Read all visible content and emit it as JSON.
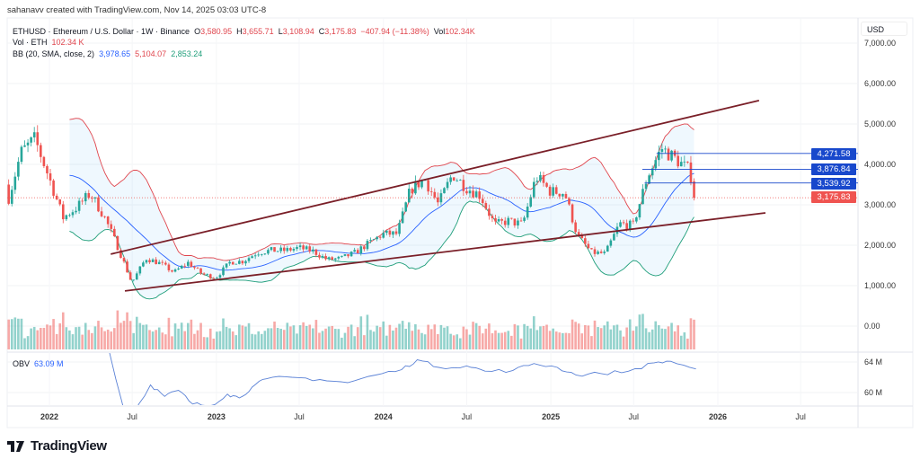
{
  "credit": "sahanavv created with TradingView.com, Nov 14, 2025 03:03 UTC-8",
  "legend": {
    "symbol": "ETHUSD · Ethereum / U.S. Dollar · 1W · Binance",
    "o_label": "O",
    "open": "3,580.95",
    "h_label": "H",
    "high": "3,655.71",
    "l_label": "L",
    "low": "3,108.94",
    "c_label": "C",
    "close": "3,175.83",
    "change": "−407.94 (−11.38%)",
    "vol_label": "Vol",
    "vol": "102.34K",
    "vol_series": "Vol · ETH",
    "vol_value": "102.34 K",
    "bb_label": "BB (20, SMA, close, 2)",
    "bb_basis": "3,978.65",
    "bb_upper": "5,104.07",
    "bb_lower": "2,853.24",
    "obv_label": "OBV",
    "obv_value": "63.09 M"
  },
  "currency": "USD",
  "logo": "TradingView",
  "colors": {
    "up": "#26a69a",
    "down": "#ef5350",
    "bb_basis": "#2962ff",
    "bb_upper": "#e0464e",
    "bb_lower": "#1f9e7a",
    "trendline": "#7a1f28",
    "level": "#1848cc",
    "obv": "#5b82d6"
  },
  "chart_data": {
    "type": "candlestick",
    "interval": "1W",
    "y_ticks": [
      "7,000.00",
      "6,000.00",
      "5,000.00",
      "4,000.00",
      "3,000.00",
      "2,000.00",
      "1,000.00",
      "0.00"
    ],
    "ylim": [
      0,
      7000
    ],
    "x_ticks": [
      "2022",
      "Jul",
      "2023",
      "Jul",
      "2024",
      "Jul",
      "2025",
      "Jul",
      "2026",
      "Jul"
    ],
    "monthly_closes": [
      [
        "2021-09-30",
        3000
      ],
      [
        "2021-10-31",
        4300
      ],
      [
        "2021-11-30",
        4630
      ],
      [
        "2021-12-31",
        3680
      ],
      [
        "2022-01-31",
        2680
      ],
      [
        "2022-02-28",
        2920
      ],
      [
        "2022-03-31",
        3280
      ],
      [
        "2022-04-30",
        2730
      ],
      [
        "2022-05-31",
        1940
      ],
      [
        "2022-06-30",
        1070
      ],
      [
        "2022-07-31",
        1680
      ],
      [
        "2022-08-31",
        1550
      ],
      [
        "2022-09-30",
        1330
      ],
      [
        "2022-10-31",
        1570
      ],
      [
        "2022-11-30",
        1290
      ],
      [
        "2022-12-31",
        1200
      ],
      [
        "2023-01-31",
        1585
      ],
      [
        "2023-02-28",
        1605
      ],
      [
        "2023-03-31",
        1820
      ],
      [
        "2023-04-30",
        1870
      ],
      [
        "2023-05-31",
        1870
      ],
      [
        "2023-06-30",
        1935
      ],
      [
        "2023-07-31",
        1855
      ],
      [
        "2023-08-31",
        1645
      ],
      [
        "2023-09-30",
        1670
      ],
      [
        "2023-10-31",
        1815
      ],
      [
        "2023-11-30",
        2050
      ],
      [
        "2023-12-31",
        2280
      ],
      [
        "2024-01-31",
        2280
      ],
      [
        "2024-02-29",
        3380
      ],
      [
        "2024-03-31",
        3640
      ],
      [
        "2024-04-30",
        3010
      ],
      [
        "2024-05-31",
        3760
      ],
      [
        "2024-06-30",
        3430
      ],
      [
        "2024-07-31",
        3230
      ],
      [
        "2024-08-31",
        2510
      ],
      [
        "2024-09-30",
        2600
      ],
      [
        "2024-10-31",
        2510
      ],
      [
        "2024-11-30",
        3700
      ],
      [
        "2024-12-31",
        3330
      ],
      [
        "2025-01-31",
        3300
      ],
      [
        "2025-02-28",
        2240
      ],
      [
        "2025-03-31",
        1820
      ],
      [
        "2025-04-30",
        1790
      ],
      [
        "2025-05-31",
        2530
      ],
      [
        "2025-06-30",
        2490
      ],
      [
        "2025-07-31",
        3700
      ],
      [
        "2025-08-31",
        4400
      ],
      [
        "2025-09-30",
        4140
      ],
      [
        "2025-10-31",
        3850
      ],
      [
        "2025-11-14",
        3175.83
      ]
    ],
    "trendlines": [
      {
        "from": [
          "2022-05-15",
          1780
        ],
        "to": [
          "2026-04-01",
          5580
        ]
      },
      {
        "from": [
          "2022-06-15",
          870
        ],
        "to": [
          "2026-04-15",
          2800
        ]
      }
    ],
    "levels": [
      {
        "price": 4271.58,
        "label": "4,271.58",
        "from": "2025-08-20"
      },
      {
        "price": 3876.84,
        "label": "3,876.84",
        "from": "2025-07-20"
      },
      {
        "price": 3539.92,
        "label": "3,539.92",
        "from": "2025-07-25"
      }
    ],
    "last_price": {
      "price": 3175.83,
      "label": "3,175.83"
    },
    "obv": {
      "y_ticks": [
        "64 M",
        "60 M"
      ],
      "points": [
        [
          "2022-05-01",
          68
        ],
        [
          "2022-06-20",
          56
        ],
        [
          "2022-08-10",
          61
        ],
        [
          "2022-09-10",
          59.5
        ],
        [
          "2022-10-10",
          60.3
        ],
        [
          "2022-11-10",
          58.5
        ],
        [
          "2022-12-20",
          58.3
        ],
        [
          "2023-01-25",
          59.8
        ],
        [
          "2023-02-20",
          59.3
        ],
        [
          "2023-03-20",
          60.7
        ],
        [
          "2023-04-20",
          61.8
        ],
        [
          "2023-06-15",
          62.0
        ],
        [
          "2023-08-15",
          61.7
        ],
        [
          "2023-10-15",
          61.3
        ],
        [
          "2023-12-15",
          62.3
        ],
        [
          "2024-02-10",
          63.0
        ],
        [
          "2024-03-15",
          64.3
        ],
        [
          "2024-05-01",
          63.3
        ],
        [
          "2024-07-01",
          63.5
        ],
        [
          "2024-08-10",
          62.8
        ],
        [
          "2024-10-10",
          62.9
        ],
        [
          "2024-11-25",
          63.8
        ],
        [
          "2025-01-15",
          63.3
        ],
        [
          "2025-02-25",
          62.3
        ],
        [
          "2025-04-20",
          62.5
        ],
        [
          "2025-06-20",
          62.8
        ],
        [
          "2025-08-15",
          63.9
        ],
        [
          "2025-09-20",
          64.1
        ],
        [
          "2025-11-14",
          63.09
        ]
      ]
    }
  }
}
